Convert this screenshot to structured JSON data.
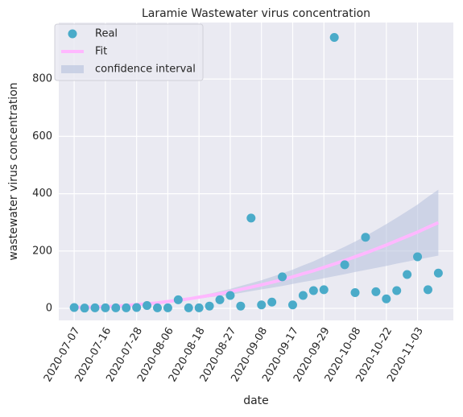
{
  "chart_data": {
    "type": "scatter",
    "title": "Laramie Wastewater virus concentration",
    "xlabel": "date",
    "ylabel": "wastewater virus concentration",
    "categories": [
      "2020-07-07",
      null,
      null,
      "2020-07-16",
      null,
      null,
      "2020-07-28",
      null,
      null,
      "2020-08-06",
      null,
      null,
      "2020-08-18",
      null,
      null,
      "2020-08-27",
      null,
      null,
      "2020-09-08",
      null,
      null,
      "2020-09-17",
      null,
      null,
      "2020-09-29",
      null,
      null,
      "2020-10-08",
      null,
      null,
      "2020-10-22",
      null,
      null,
      "2020-11-03",
      null,
      null
    ],
    "series": [
      {
        "name": "Real",
        "kind": "points",
        "color": "#4aabc9",
        "values": [
          3,
          1,
          2,
          2,
          2,
          2,
          3,
          10,
          2,
          2,
          30,
          2,
          2,
          8,
          30,
          45,
          8,
          315,
          12,
          22,
          110,
          12,
          45,
          62,
          65,
          945,
          152,
          55,
          248,
          58,
          33,
          62,
          118,
          180,
          65,
          123
        ]
      },
      {
        "name": "Fit",
        "kind": "line",
        "color": "#ffb8ff",
        "values": [
          4,
          4,
          5,
          6,
          8,
          10,
          13,
          16,
          19,
          24,
          28,
          33,
          39,
          45,
          51,
          58,
          66,
          74,
          82,
          91,
          100,
          110,
          121,
          131,
          143,
          155,
          167,
          180,
          193,
          207,
          221,
          236,
          251,
          266,
          283,
          299
        ]
      },
      {
        "name": "confidence interval",
        "kind": "band",
        "color": "#b4bfdc",
        "lower": [
          4,
          4,
          5,
          6,
          8,
          9,
          12,
          15,
          17,
          22,
          25,
          29,
          34,
          39,
          43,
          48,
          54,
          60,
          66,
          72,
          78,
          85,
          92,
          98,
          105,
          112,
          119,
          127,
          134,
          141,
          148,
          156,
          163,
          170,
          177,
          184
        ],
        "upper": [
          4,
          4,
          5,
          6,
          8,
          11,
          14,
          17,
          21,
          26,
          31,
          37,
          44,
          51,
          59,
          68,
          78,
          88,
          98,
          110,
          122,
          135,
          150,
          164,
          181,
          198,
          215,
          233,
          252,
          273,
          294,
          316,
          339,
          362,
          389,
          414
        ]
      }
    ],
    "ylim": [
      -42,
      997
    ],
    "yticks": [
      0,
      200,
      400,
      600,
      800
    ],
    "grid": true,
    "legend": "upper left"
  }
}
